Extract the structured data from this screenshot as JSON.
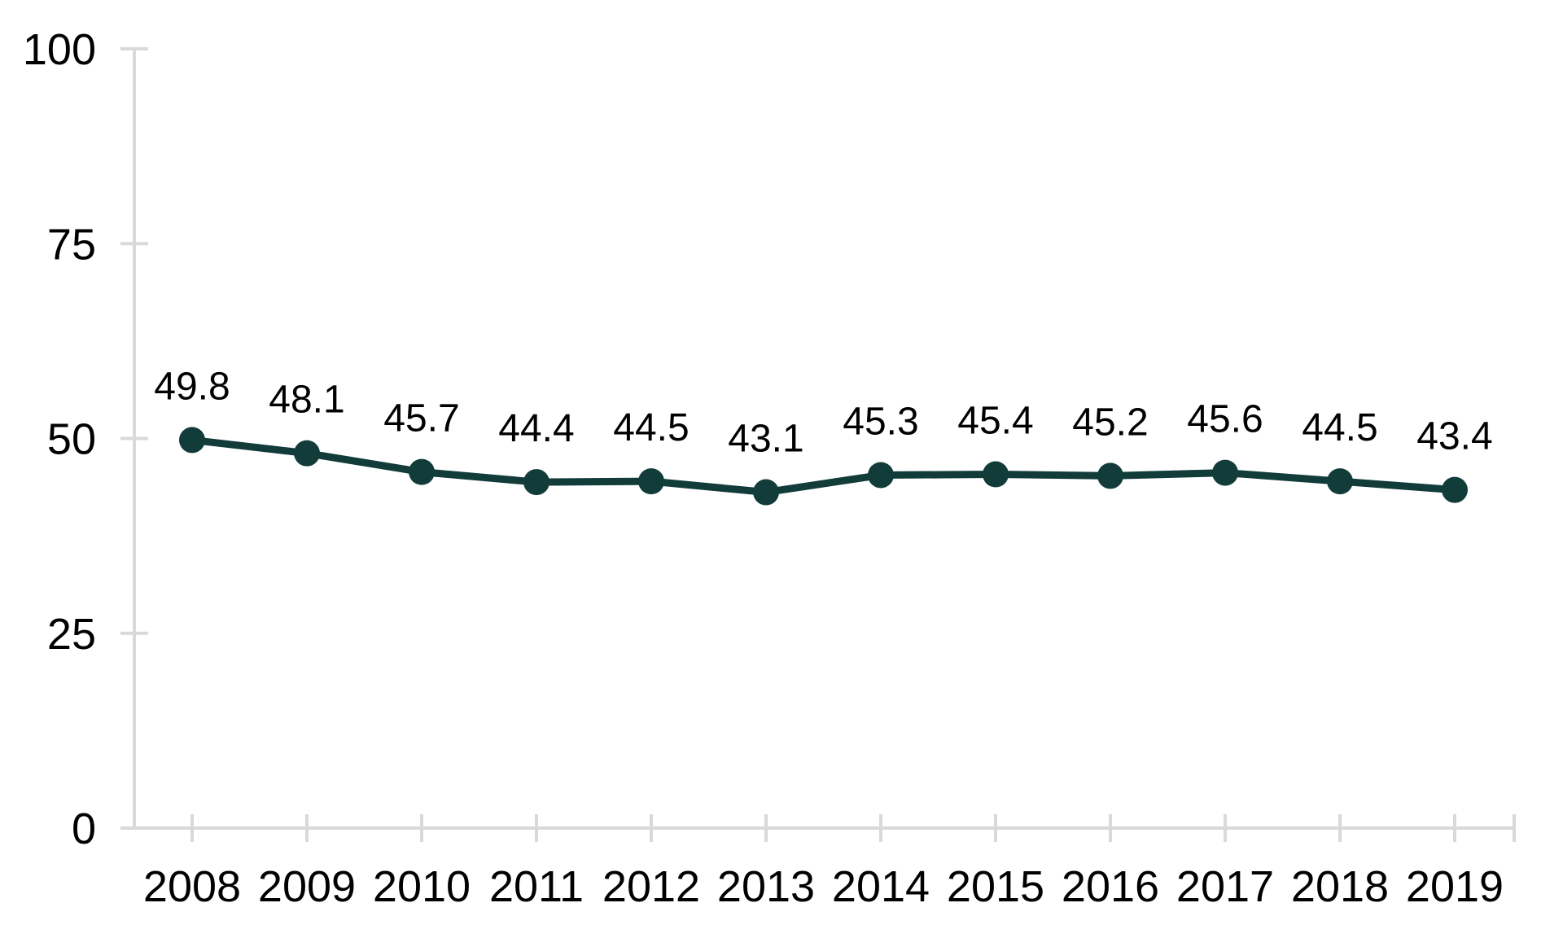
{
  "page": {
    "background": "#ffffff"
  },
  "chart_data": {
    "type": "line",
    "title": "",
    "categories": [
      "2008",
      "2009",
      "2010",
      "2011",
      "2012",
      "2013",
      "2014",
      "2015",
      "2016",
      "2017",
      "2018",
      "2019"
    ],
    "series": [
      {
        "name": "series-1",
        "values": [
          49.8,
          48.1,
          45.7,
          44.4,
          44.5,
          43.1,
          45.3,
          45.4,
          45.2,
          45.6,
          44.5,
          43.4
        ]
      }
    ],
    "data_labels": [
      "49.8",
      "48.1",
      "45.7",
      "44.4",
      "44.5",
      "43.1",
      "45.3",
      "45.4",
      "45.2",
      "45.6",
      "44.5",
      "43.4"
    ],
    "y_ticks": [
      "0",
      "25",
      "50",
      "75",
      "100"
    ],
    "y_tick_values": [
      0,
      25,
      50,
      75,
      100
    ],
    "ylim": [
      0,
      100
    ],
    "xlabel": "",
    "ylabel": "",
    "grid": false,
    "legend": "none",
    "colors": {
      "line": "#113c3a",
      "marker": "#113c3a",
      "axis": "#d9d9d9",
      "tick_label_text": "#000000",
      "data_label_text": "#000000"
    }
  }
}
